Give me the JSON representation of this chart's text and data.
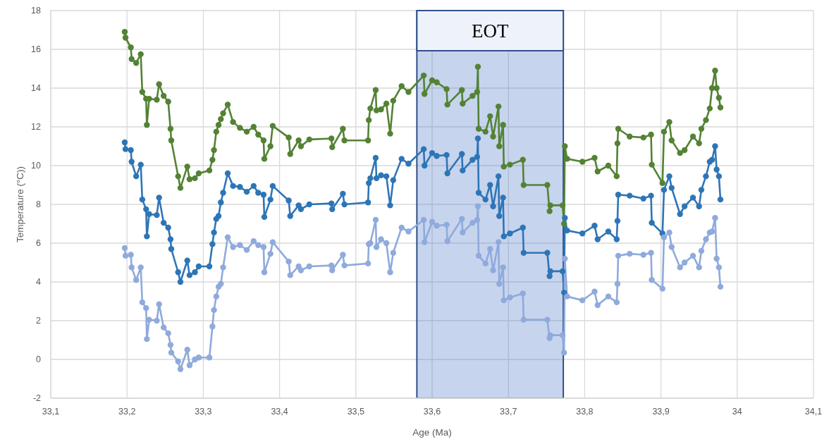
{
  "chart_data": {
    "type": "line",
    "xlabel": "Age (Ma)",
    "ylabel": "Temperature (°C))",
    "xlim": [
      33.1,
      34.1
    ],
    "xticks": [
      {
        "value": 33.1,
        "label": "33,1"
      },
      {
        "value": 33.2,
        "label": "33,2"
      },
      {
        "value": 33.3,
        "label": "33,3"
      },
      {
        "value": 33.4,
        "label": "33,4"
      },
      {
        "value": 33.5,
        "label": "33,5"
      },
      {
        "value": 33.6,
        "label": "33,6"
      },
      {
        "value": 33.7,
        "label": "33,7"
      },
      {
        "value": 33.8,
        "label": "33,8"
      },
      {
        "value": 33.9,
        "label": "33,9"
      },
      34,
      {
        "value": 34.1,
        "label": "34,1"
      }
    ],
    "ylim": [
      -2,
      18
    ],
    "yticks": [
      -2,
      0,
      2,
      4,
      6,
      8,
      10,
      12,
      14,
      16,
      18
    ],
    "grid": true,
    "marker": "circle",
    "line_style": "solid",
    "bands": [
      {
        "axis": "x",
        "from": 33.58,
        "to": 33.772,
        "label": "EOT",
        "color": "#4472c4"
      }
    ],
    "x": [
      33.197,
      33.198,
      33.205,
      33.206,
      33.212,
      33.218,
      33.22,
      33.225,
      33.226,
      33.229,
      33.239,
      33.242,
      33.248,
      33.254,
      33.257,
      33.258,
      33.267,
      33.27,
      33.279,
      33.282,
      33.289,
      33.294,
      33.308,
      33.312,
      33.314,
      33.317,
      33.32,
      33.323,
      33.326,
      33.332,
      33.339,
      33.348,
      33.357,
      33.366,
      33.372,
      33.379,
      33.38,
      33.388,
      33.391,
      33.412,
      33.414,
      33.425,
      33.428,
      33.439,
      33.468,
      33.469,
      33.483,
      33.485,
      33.516,
      33.517,
      33.519,
      33.526,
      33.527,
      33.533,
      33.54,
      33.545,
      33.549,
      33.56,
      33.569,
      33.589,
      33.59,
      33.6,
      33.606,
      33.619,
      33.62,
      33.639,
      33.64,
      33.653,
      33.659,
      33.66,
      33.661,
      33.67,
      33.676,
      33.68,
      33.687,
      33.688,
      33.693,
      33.694,
      33.702,
      33.719,
      33.72,
      33.751,
      33.754,
      33.755,
      33.771,
      33.773,
      33.774,
      33.777,
      33.797,
      33.813,
      33.817,
      33.831,
      33.842,
      33.843,
      33.844,
      33.859,
      33.877,
      33.887,
      33.888,
      33.902,
      33.904,
      33.911,
      33.914,
      33.925,
      33.931,
      33.942,
      33.95,
      33.953,
      33.959,
      33.964,
      33.967,
      33.971,
      33.973,
      33.976,
      33.978
    ],
    "series": [
      {
        "color": "#548235",
        "values": [
          16.9,
          16.6,
          16.1,
          15.5,
          15.3,
          15.75,
          13.8,
          13.45,
          12.1,
          13.45,
          13.4,
          14.2,
          13.6,
          13.3,
          11.9,
          11.3,
          9.45,
          8.85,
          9.95,
          9.3,
          9.35,
          9.6,
          9.75,
          10.3,
          10.8,
          11.75,
          12.1,
          12.4,
          12.7,
          13.15,
          12.25,
          11.95,
          11.75,
          12.0,
          11.6,
          11.3,
          10.35,
          11.0,
          12.05,
          11.45,
          10.6,
          11.3,
          11.0,
          11.35,
          11.4,
          10.95,
          11.9,
          11.3,
          11.3,
          12.35,
          12.95,
          13.9,
          12.85,
          12.9,
          13.2,
          11.65,
          13.35,
          14.1,
          13.8,
          14.65,
          13.7,
          14.4,
          14.3,
          13.95,
          13.15,
          13.9,
          13.2,
          13.6,
          13.8,
          15.1,
          11.9,
          11.75,
          12.55,
          11.5,
          13.05,
          11.0,
          12.1,
          9.95,
          10.05,
          10.3,
          9.0,
          9.0,
          7.65,
          7.95,
          7.95,
          7.0,
          11.0,
          10.35,
          10.2,
          10.4,
          9.7,
          10.0,
          9.45,
          11.15,
          11.9,
          11.5,
          11.45,
          11.6,
          10.05,
          9.1,
          11.75,
          12.25,
          11.3,
          10.65,
          10.8,
          11.5,
          11.15,
          11.9,
          12.35,
          12.95,
          14.0,
          14.9,
          14.0,
          13.5,
          13.0
        ]
      },
      {
        "color": "#2e75b6",
        "values": [
          11.2,
          10.85,
          10.8,
          10.2,
          9.45,
          10.05,
          8.25,
          7.75,
          6.35,
          7.5,
          7.45,
          8.35,
          7.05,
          6.8,
          6.2,
          5.7,
          4.5,
          4.0,
          5.1,
          4.35,
          4.5,
          4.8,
          4.8,
          5.95,
          6.55,
          7.25,
          7.4,
          8.1,
          8.6,
          9.6,
          8.95,
          8.9,
          8.65,
          8.95,
          8.6,
          8.5,
          7.35,
          8.25,
          8.95,
          8.2,
          7.4,
          7.95,
          7.75,
          8.0,
          8.05,
          7.75,
          8.55,
          8.0,
          8.1,
          9.1,
          9.35,
          10.4,
          9.35,
          9.5,
          9.45,
          7.95,
          9.25,
          10.35,
          10.1,
          10.85,
          10.0,
          10.65,
          10.5,
          10.55,
          9.6,
          10.6,
          9.75,
          10.3,
          10.45,
          11.4,
          8.6,
          8.25,
          9.0,
          7.9,
          9.45,
          7.4,
          8.35,
          6.35,
          6.5,
          6.8,
          5.5,
          5.5,
          4.3,
          4.55,
          4.55,
          3.45,
          7.3,
          6.65,
          6.5,
          6.9,
          6.2,
          6.6,
          6.2,
          7.15,
          8.5,
          8.45,
          8.3,
          8.45,
          7.05,
          6.5,
          8.75,
          9.45,
          8.85,
          7.5,
          7.9,
          8.35,
          7.9,
          8.75,
          9.45,
          10.2,
          10.3,
          11.0,
          9.8,
          9.45,
          8.25
        ]
      },
      {
        "color": "#8faadc",
        "values": [
          5.75,
          5.35,
          5.4,
          4.75,
          4.1,
          4.75,
          2.95,
          2.65,
          1.05,
          2.05,
          2.0,
          2.85,
          1.65,
          1.35,
          0.75,
          0.35,
          -0.1,
          -0.5,
          0.5,
          -0.3,
          0.0,
          0.1,
          0.1,
          1.7,
          2.55,
          3.25,
          3.75,
          3.9,
          4.75,
          6.3,
          5.8,
          5.9,
          5.65,
          6.1,
          5.9,
          5.8,
          4.5,
          5.45,
          6.05,
          5.05,
          4.35,
          4.8,
          4.6,
          4.8,
          4.85,
          4.6,
          5.4,
          4.85,
          4.95,
          5.95,
          6.0,
          7.2,
          5.8,
          6.2,
          6.0,
          4.5,
          5.5,
          6.8,
          6.6,
          7.2,
          6.05,
          7.1,
          6.9,
          6.95,
          6.1,
          7.25,
          6.55,
          7.05,
          7.2,
          7.9,
          5.35,
          4.95,
          5.7,
          4.6,
          6.05,
          3.9,
          4.75,
          3.05,
          3.2,
          3.4,
          2.05,
          2.05,
          1.1,
          1.25,
          1.25,
          0.35,
          5.2,
          3.25,
          3.05,
          3.5,
          2.8,
          3.25,
          2.95,
          3.9,
          5.35,
          5.45,
          5.4,
          5.5,
          4.1,
          3.65,
          6.3,
          6.55,
          5.8,
          4.75,
          5.0,
          5.35,
          4.75,
          5.6,
          6.2,
          6.55,
          6.6,
          7.3,
          5.2,
          4.75,
          3.75
        ]
      }
    ]
  }
}
